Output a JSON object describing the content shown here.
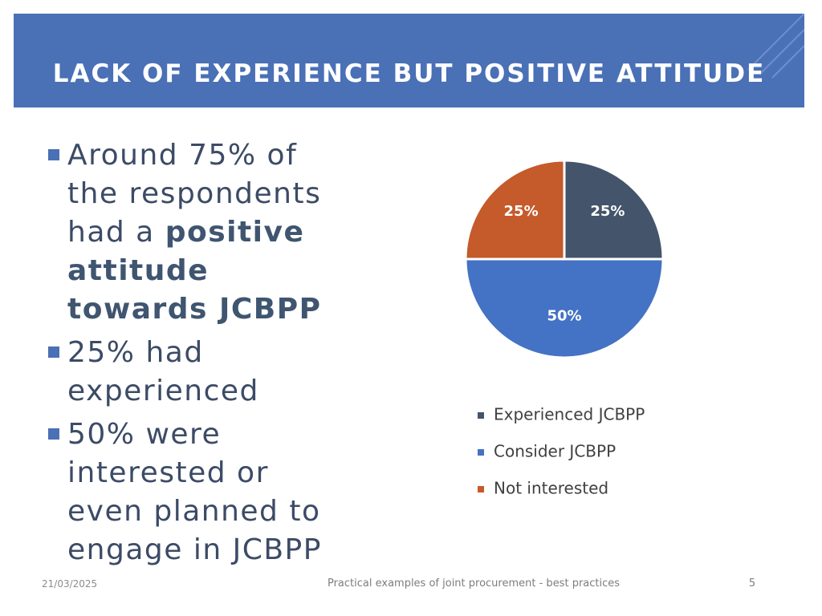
{
  "slide": {
    "title": "LACK OF EXPERIENCE BUT POSITIVE ATTITUDE"
  },
  "bullets": {
    "b1_before": "Around 75% of the respondents had a ",
    "b1_bold": "positive attitude towards JCBPP",
    "b2": "25% had experienced",
    "b3": "50% were interested or even planned to engage in JCBPP"
  },
  "footer": {
    "date": "21/03/2025",
    "title": "Practical examples of joint procurement - best practices",
    "page": "5"
  },
  "chart_data": {
    "type": "pie",
    "categories": [
      "Experienced JCBPP",
      "Consider JCBPP",
      "Not interested"
    ],
    "values": [
      25,
      50,
      25
    ],
    "labels": [
      "25%",
      "50%",
      "25%"
    ],
    "colors": [
      "#44546a",
      "#4472c4",
      "#c55a2b"
    ],
    "legend_position": "bottom"
  }
}
